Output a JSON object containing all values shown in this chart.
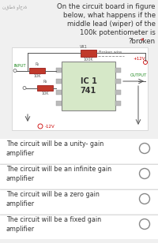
{
  "bg_color": "#f0f0f0",
  "title_arabic": "نقطة واحدة",
  "title_lines": [
    "On the circuit board in figure",
    "below, what happens if the",
    "middle lead (wiper) of the",
    "100k potentiometer is",
    "* ?broken"
  ],
  "title_star_color": "#cc0000",
  "options": [
    "The circuit will be a unity- gain\namplifier",
    "The circuit will be an infinite gain\namplifier",
    "The circuit will be a zero gain\namplifier",
    "The circuit will be a fixed gain\namplifier"
  ],
  "circuit_bg": "#d6e8c8",
  "resistor_color": "#c0392b",
  "resistor_edge": "#8b0000",
  "text_color": "#333333",
  "label_color": "#cc0000",
  "wire_color": "#555555",
  "pin_color": "#bbbbbb",
  "green_label": "#228b22",
  "white": "#ffffff",
  "option_bg": "#ffffff",
  "divider_color": "#cccccc",
  "circle_edge": "#888888",
  "arabic_color": "#999999"
}
